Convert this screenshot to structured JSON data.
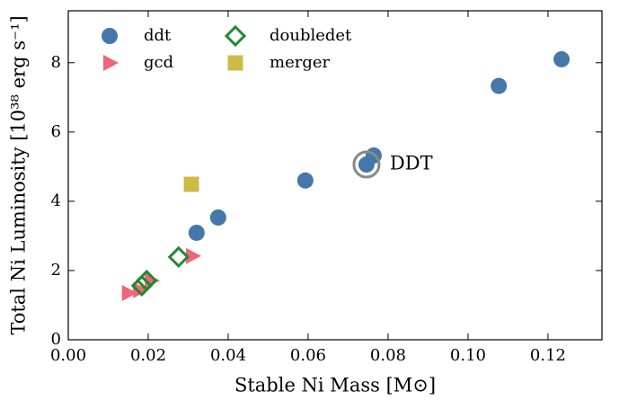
{
  "chart_data": {
    "type": "scatter",
    "xlabel": "Stable Ni Mass [M⊙]",
    "ylabel": "Total Ni Luminosity [10³⁸ erg s⁻¹]",
    "xlim": [
      0,
      0.1335
    ],
    "ylim": [
      0,
      9.5
    ],
    "xticks": [
      {
        "value": 0,
        "label": "0.00"
      },
      {
        "value": 0.02,
        "label": "0.02"
      },
      {
        "value": 0.04,
        "label": "0.04"
      },
      {
        "value": 0.06,
        "label": "0.06"
      },
      {
        "value": 0.08,
        "label": "0.08"
      },
      {
        "value": 0.1,
        "label": "0.10"
      },
      {
        "value": 0.12,
        "label": "0.12"
      }
    ],
    "yticks": [
      0,
      2,
      4,
      6,
      8
    ],
    "legend": "upper left",
    "series": [
      {
        "name": "ddt",
        "color": "#4477aa",
        "marker": "circle",
        "x": [
          0.1234,
          0.1077,
          0.0764,
          0.0746,
          0.0593,
          0.0375,
          0.0321
        ],
        "values": [
          8.1,
          7.33,
          5.32,
          5.06,
          4.6,
          3.53,
          3.09
        ]
      },
      {
        "name": "gcd",
        "color": "#ee6677",
        "marker": "triangle-right",
        "x": [
          0.015,
          0.0178,
          0.0207,
          0.031
        ],
        "values": [
          1.35,
          1.43,
          1.71,
          2.42
        ]
      },
      {
        "name": "doubledet",
        "color": "#228833",
        "marker": "diamond-open",
        "x": [
          0.0184,
          0.0196,
          0.0276
        ],
        "values": [
          1.56,
          1.71,
          2.39
        ]
      },
      {
        "name": "merger",
        "color": "#ccbb44",
        "marker": "square",
        "x": [
          0.0308
        ],
        "values": [
          4.49
        ]
      }
    ],
    "annotations": [
      {
        "text": "DDT",
        "x": 0.0746,
        "y": 5.06
      }
    ]
  }
}
